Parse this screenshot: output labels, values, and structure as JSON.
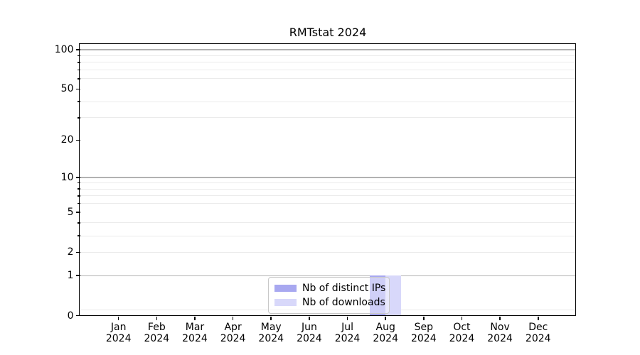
{
  "title": "RMTstat 2024",
  "chart_data": {
    "type": "bar",
    "title": "RMTstat 2024",
    "categories": [
      "Jan 2024",
      "Feb 2024",
      "Mar 2024",
      "Apr 2024",
      "May 2024",
      "Jun 2024",
      "Jul 2024",
      "Aug 2024",
      "Sep 2024",
      "Oct 2024",
      "Nov 2024",
      "Dec 2024"
    ],
    "x_axis": {
      "months": [
        "Jan",
        "Feb",
        "Mar",
        "Apr",
        "May",
        "Jun",
        "Jul",
        "Aug",
        "Sep",
        "Oct",
        "Nov",
        "Dec"
      ],
      "year": "2024"
    },
    "series": [
      {
        "name": "Nb of distinct IPs",
        "color": "#a8a8f0",
        "values": [
          0,
          0,
          0,
          0,
          0,
          0,
          0,
          1,
          0,
          0,
          0,
          0
        ]
      },
      {
        "name": "Nb of downloads",
        "color": "#d8d8fa",
        "values": [
          0,
          0,
          0,
          0,
          0,
          0,
          0,
          1,
          0,
          0,
          0,
          0
        ]
      }
    ],
    "y_axis": {
      "scale": "log1p",
      "ylim": [
        0,
        110
      ],
      "major_ticks": [
        0,
        1,
        2,
        5,
        10,
        20,
        50,
        100
      ],
      "major_tick_labels": [
        "0",
        "1",
        "2",
        "5",
        "10",
        "20",
        "50",
        "100"
      ],
      "major_gridlines": [
        1,
        10,
        100
      ],
      "minor_gridlines": [
        0.1,
        2,
        3,
        4,
        6,
        7,
        8,
        9,
        30,
        40,
        60,
        70,
        80,
        90
      ],
      "grid": true
    },
    "legend": {
      "position": "lower center",
      "entries": [
        "Nb of distinct IPs",
        "Nb of downloads"
      ]
    },
    "colors": {
      "major_grid": "#b2b2b2",
      "minor_grid": "#ebebeb",
      "spine": "#000000",
      "background": "#ffffff"
    }
  }
}
